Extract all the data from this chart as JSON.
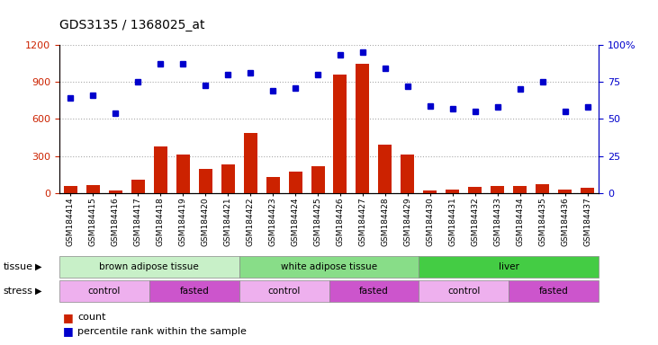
{
  "title": "GDS3135 / 1368025_at",
  "samples": [
    "GSM184414",
    "GSM184415",
    "GSM184416",
    "GSM184417",
    "GSM184418",
    "GSM184419",
    "GSM184420",
    "GSM184421",
    "GSM184422",
    "GSM184423",
    "GSM184424",
    "GSM184425",
    "GSM184426",
    "GSM184427",
    "GSM184428",
    "GSM184429",
    "GSM184430",
    "GSM184431",
    "GSM184432",
    "GSM184433",
    "GSM184434",
    "GSM184435",
    "GSM184436",
    "GSM184437"
  ],
  "counts": [
    55,
    65,
    20,
    110,
    380,
    310,
    195,
    230,
    490,
    130,
    175,
    220,
    960,
    1050,
    390,
    315,
    25,
    30,
    50,
    60,
    55,
    70,
    30,
    45
  ],
  "percentile_pct": [
    64,
    66,
    54,
    75,
    87,
    87,
    73,
    80,
    81,
    69,
    71,
    80,
    93,
    95,
    84,
    72,
    59,
    57,
    55,
    58,
    70,
    75,
    55,
    58
  ],
  "bar_color": "#cc2200",
  "dot_color": "#0000cc",
  "left_ylim": [
    0,
    1200
  ],
  "left_yticks": [
    0,
    300,
    600,
    900,
    1200
  ],
  "right_ylim": [
    0,
    100
  ],
  "right_yticks": [
    0,
    25,
    50,
    75,
    100
  ],
  "tissue_groups": [
    {
      "label": "brown adipose tissue",
      "start": 0,
      "end": 8,
      "color": "#c8f0c8"
    },
    {
      "label": "white adipose tissue",
      "start": 8,
      "end": 16,
      "color": "#88dd88"
    },
    {
      "label": "liver",
      "start": 16,
      "end": 24,
      "color": "#44cc44"
    }
  ],
  "stress_groups": [
    {
      "label": "control",
      "start": 0,
      "end": 4,
      "color": "#eeb0ee"
    },
    {
      "label": "fasted",
      "start": 4,
      "end": 8,
      "color": "#cc55cc"
    },
    {
      "label": "control",
      "start": 8,
      "end": 12,
      "color": "#eeb0ee"
    },
    {
      "label": "fasted",
      "start": 12,
      "end": 16,
      "color": "#cc55cc"
    },
    {
      "label": "control",
      "start": 16,
      "end": 20,
      "color": "#eeb0ee"
    },
    {
      "label": "fasted",
      "start": 20,
      "end": 24,
      "color": "#cc55cc"
    }
  ],
  "tissue_label": "tissue",
  "stress_label": "stress",
  "legend_count_label": "count",
  "legend_pct_label": "percentile rank within the sample",
  "grid_color": "#aaaaaa",
  "bg_color": "#ffffff",
  "plot_bg_color": "#ffffff"
}
